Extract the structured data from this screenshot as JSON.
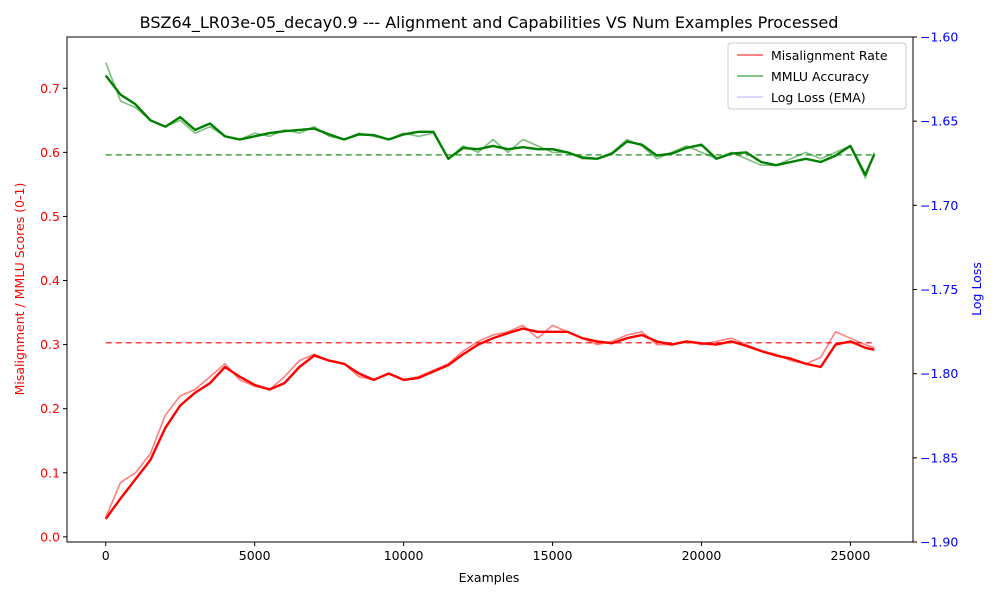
{
  "chart_data": {
    "type": "line",
    "title": "BSZ64_LR03e-05_decay0.9 --- Alignment and Capabilities VS Num Examples Processed",
    "xlabel": "Examples",
    "ylabel_left": "Misalignment / MMLU Scores (0-1)",
    "ylabel_right": "Log Loss",
    "xlim": [
      -1300,
      27100
    ],
    "ylim_left": [
      -0.008,
      0.78
    ],
    "ylim_right": [
      -1.9,
      -1.6
    ],
    "x_ticks": [
      0,
      5000,
      10000,
      15000,
      20000,
      25000
    ],
    "x_tick_labels": [
      "0",
      "5000",
      "10000",
      "15000",
      "20000",
      "25000"
    ],
    "y_ticks_left": [
      0.0,
      0.1,
      0.2,
      0.3,
      0.4,
      0.5,
      0.6,
      0.7
    ],
    "y_tick_labels_left": [
      "0.0",
      "0.1",
      "0.2",
      "0.3",
      "0.4",
      "0.5",
      "0.6",
      "0.7"
    ],
    "y_ticks_right": [
      -1.9,
      -1.85,
      -1.8,
      -1.75,
      -1.7,
      -1.65,
      -1.6
    ],
    "y_tick_labels_right": [
      "−1.90",
      "−1.85",
      "−1.80",
      "−1.75",
      "−1.70",
      "−1.65",
      "−1.60"
    ],
    "grid": false,
    "legend_position": "top-right",
    "legend": [
      "Misalignment Rate",
      "MMLU Accuracy",
      "Log Loss (EMA)"
    ],
    "colors": {
      "misalignment": "#ff0000",
      "mmlu": "#008000",
      "logloss": "#0000ff",
      "left_axis": "#ff0000",
      "right_axis": "#0000ff"
    },
    "reference_lines": {
      "misalignment_mean": 0.303,
      "mmlu_mean": 0.596
    },
    "series": [
      {
        "name": "Misalignment Rate",
        "axis": "left",
        "x": [
          0,
          500,
          1000,
          1500,
          2000,
          2500,
          3000,
          3500,
          4000,
          4500,
          5000,
          5500,
          6000,
          6500,
          7000,
          7500,
          8000,
          8500,
          9000,
          9500,
          10000,
          10500,
          11000,
          11500,
          12000,
          12500,
          13000,
          13500,
          14000,
          14500,
          15000,
          15500,
          16000,
          16500,
          17000,
          17500,
          18000,
          18500,
          19000,
          19500,
          20000,
          20500,
          21000,
          21500,
          22000,
          22500,
          23000,
          23500,
          24000,
          24500,
          25000,
          25500,
          25800
        ],
        "raw": [
          0.03,
          0.085,
          0.1,
          0.13,
          0.19,
          0.22,
          0.23,
          0.25,
          0.27,
          0.245,
          0.235,
          0.23,
          0.25,
          0.275,
          0.285,
          0.275,
          0.27,
          0.25,
          0.245,
          0.255,
          0.245,
          0.25,
          0.26,
          0.27,
          0.29,
          0.305,
          0.315,
          0.32,
          0.33,
          0.31,
          0.33,
          0.32,
          0.31,
          0.3,
          0.305,
          0.315,
          0.32,
          0.3,
          0.3,
          0.305,
          0.3,
          0.305,
          0.31,
          0.3,
          0.29,
          0.285,
          0.275,
          0.27,
          0.28,
          0.32,
          0.31,
          0.3,
          0.295
        ],
        "ema": [
          0.028,
          0.06,
          0.09,
          0.12,
          0.17,
          0.205,
          0.225,
          0.24,
          0.265,
          0.25,
          0.237,
          0.23,
          0.24,
          0.265,
          0.283,
          0.275,
          0.27,
          0.255,
          0.245,
          0.255,
          0.245,
          0.248,
          0.258,
          0.268,
          0.285,
          0.3,
          0.31,
          0.318,
          0.325,
          0.32,
          0.32,
          0.32,
          0.31,
          0.305,
          0.302,
          0.31,
          0.315,
          0.305,
          0.3,
          0.305,
          0.302,
          0.3,
          0.305,
          0.298,
          0.29,
          0.283,
          0.278,
          0.27,
          0.265,
          0.3,
          0.305,
          0.295,
          0.292
        ]
      },
      {
        "name": "MMLU Accuracy",
        "axis": "left",
        "x": [
          0,
          500,
          1000,
          1500,
          2000,
          2500,
          3000,
          3500,
          4000,
          4500,
          5000,
          5500,
          6000,
          6500,
          7000,
          7500,
          8000,
          8500,
          9000,
          9500,
          10000,
          10500,
          11000,
          11500,
          12000,
          12500,
          13000,
          13500,
          14000,
          14500,
          15000,
          15500,
          16000,
          16500,
          17000,
          17500,
          18000,
          18500,
          19000,
          19500,
          20000,
          20500,
          21000,
          21500,
          22000,
          22500,
          23000,
          23500,
          24000,
          24500,
          25000,
          25500,
          25800
        ],
        "raw": [
          0.74,
          0.68,
          0.67,
          0.65,
          0.64,
          0.65,
          0.63,
          0.64,
          0.625,
          0.62,
          0.63,
          0.625,
          0.635,
          0.63,
          0.64,
          0.625,
          0.62,
          0.63,
          0.625,
          0.62,
          0.63,
          0.625,
          0.63,
          0.59,
          0.61,
          0.6,
          0.62,
          0.6,
          0.62,
          0.61,
          0.6,
          0.6,
          0.59,
          0.59,
          0.6,
          0.62,
          0.61,
          0.59,
          0.6,
          0.61,
          0.6,
          0.59,
          0.6,
          0.59,
          0.58,
          0.58,
          0.59,
          0.6,
          0.59,
          0.6,
          0.61,
          0.56,
          0.6
        ],
        "ema": [
          0.72,
          0.69,
          0.675,
          0.65,
          0.64,
          0.655,
          0.635,
          0.645,
          0.625,
          0.62,
          0.625,
          0.63,
          0.633,
          0.635,
          0.637,
          0.628,
          0.62,
          0.628,
          0.627,
          0.62,
          0.628,
          0.632,
          0.632,
          0.59,
          0.607,
          0.605,
          0.61,
          0.605,
          0.608,
          0.605,
          0.605,
          0.6,
          0.592,
          0.59,
          0.598,
          0.617,
          0.612,
          0.595,
          0.598,
          0.607,
          0.612,
          0.59,
          0.598,
          0.6,
          0.585,
          0.58,
          0.585,
          0.59,
          0.585,
          0.595,
          0.61,
          0.565,
          0.597
        ]
      },
      {
        "name": "Log Loss (EMA)",
        "axis": "right",
        "x": [],
        "values": []
      }
    ]
  }
}
